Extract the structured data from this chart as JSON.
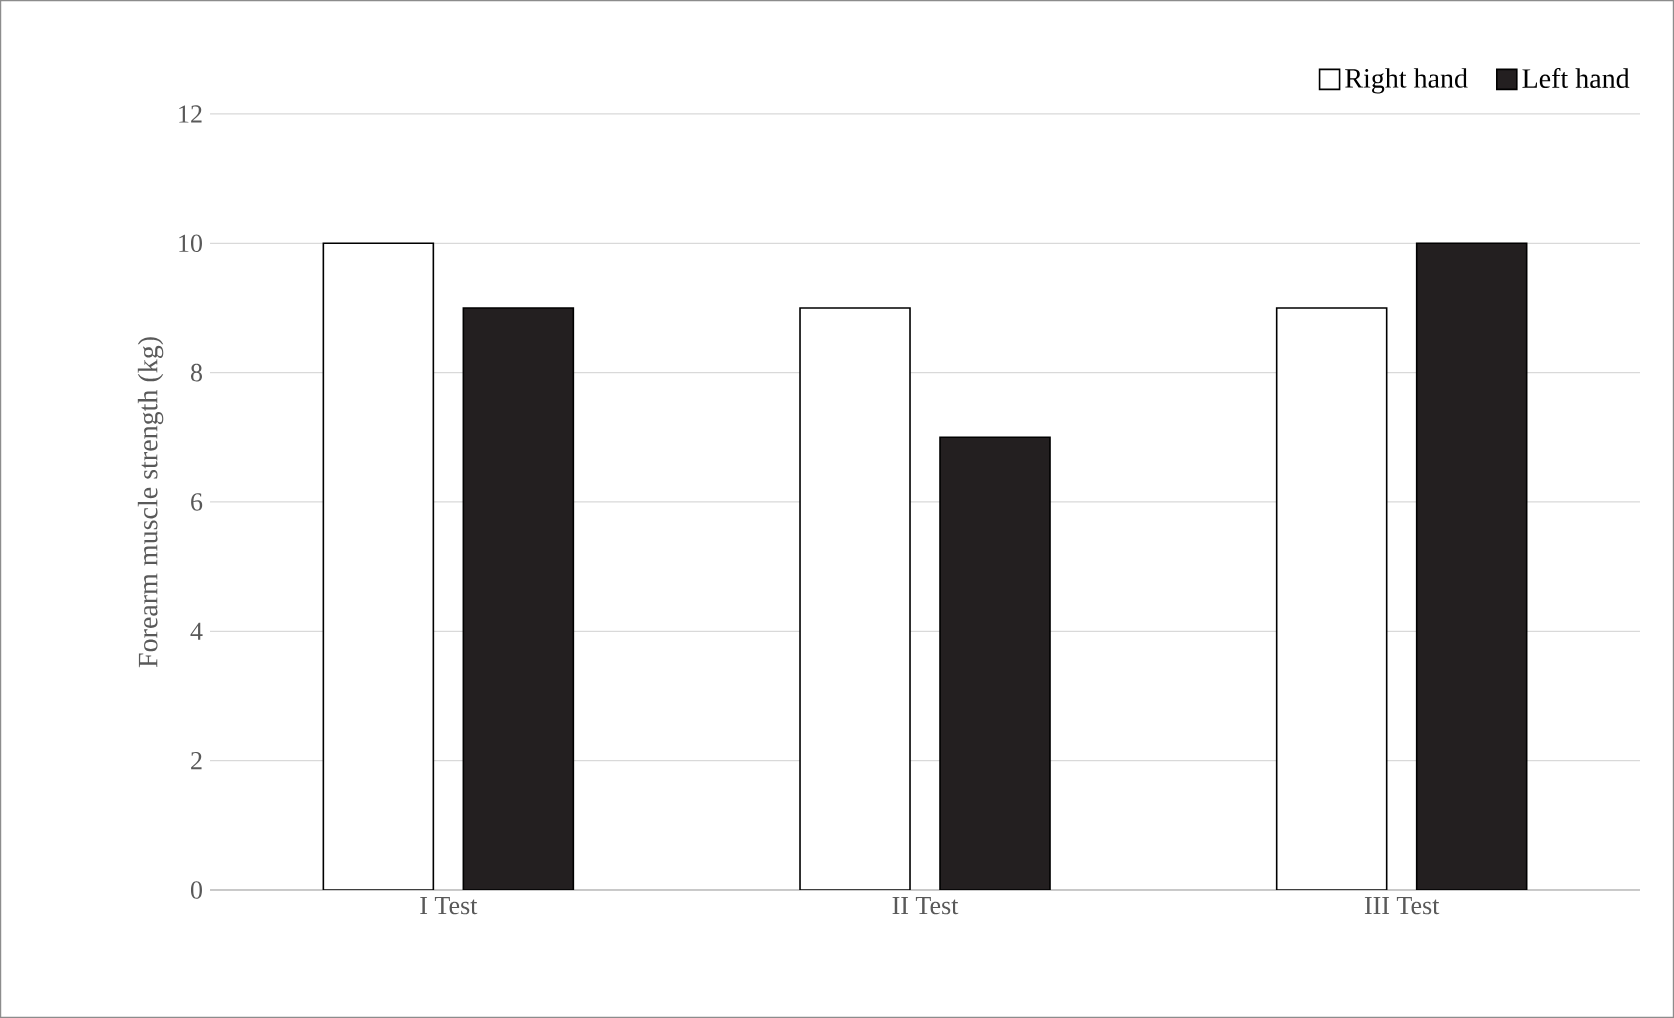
{
  "chart_data": {
    "type": "bar",
    "ylabel": "Forearm muscle strength (kg)",
    "categories": [
      "I Test",
      "II Test",
      "III Test"
    ],
    "series": [
      {
        "name": "Right hand",
        "color": "#ffffff",
        "values": [
          10,
          9,
          9
        ]
      },
      {
        "name": "Left hand",
        "color": "#231f20",
        "values": [
          9,
          7,
          10
        ]
      }
    ],
    "ylim": [
      0,
      12
    ],
    "yticks": [
      0,
      2,
      4,
      6,
      8,
      10,
      12
    ],
    "grid": "y",
    "legend": "top right"
  }
}
